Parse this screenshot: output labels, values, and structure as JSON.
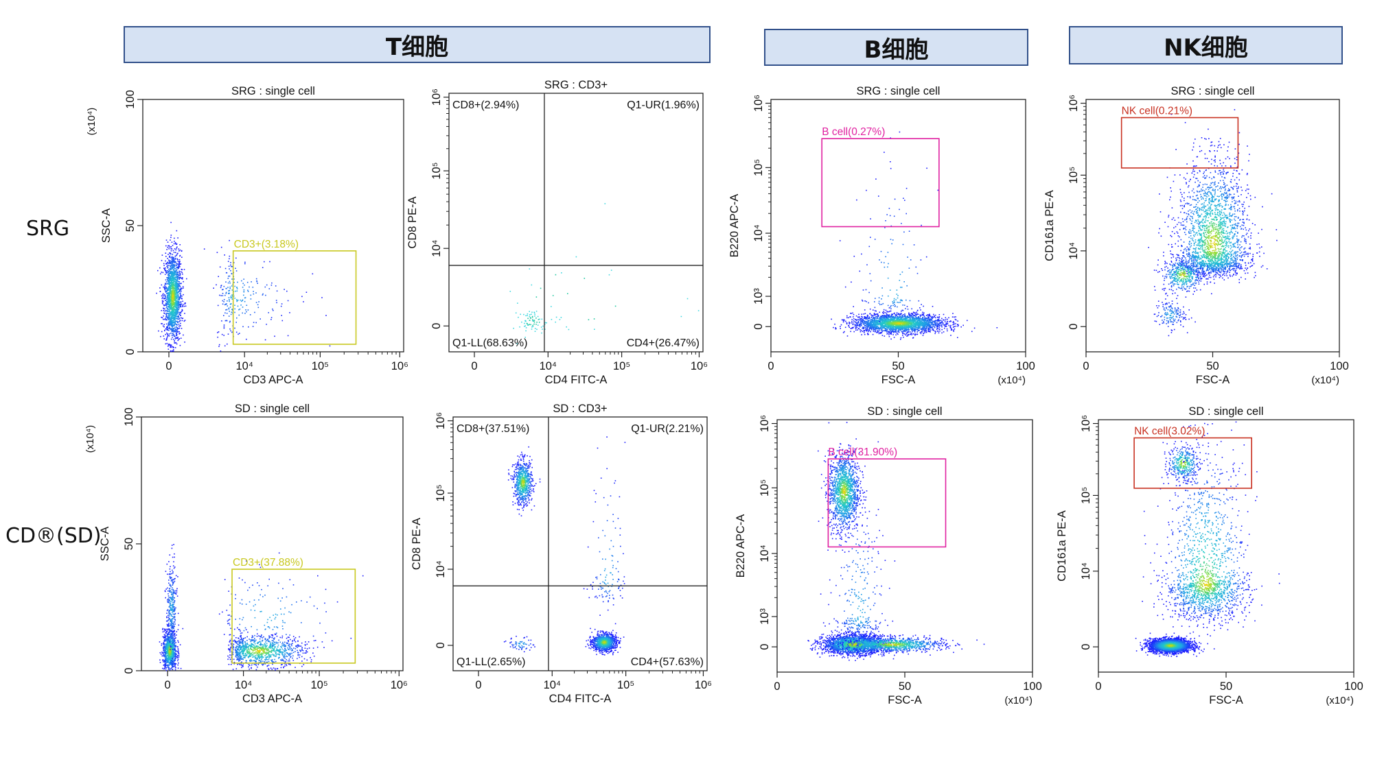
{
  "headers": [
    "T细胞",
    "B细胞",
    "NK细胞"
  ],
  "row_labels": [
    "SRG",
    "CD®(SD)"
  ],
  "colors": {
    "density_low": "#1a1aff",
    "density_mid": "#20c8c8",
    "density_high": "#ffd000",
    "gate_cd3": "#c8c81e",
    "gate_b": "#e020a0",
    "gate_nk": "#c83020",
    "axis": "#222222"
  },
  "chart_data": [
    {
      "type": "scatter",
      "id": "srg-cd3",
      "title": "SRG : single cell",
      "xlabel": "CD3 APC-A",
      "ylabel": "SSC-A",
      "y_multiplier": "(x10⁴)",
      "x_scale": "biexponential",
      "y_scale": "linear",
      "ylim": [
        0,
        100
      ],
      "x_ticks": [
        "0",
        "10⁴",
        "10⁵",
        "10⁶"
      ],
      "y_ticks": [
        "0",
        "50",
        "100"
      ],
      "gate": {
        "label": "CD3+(3.18%)",
        "percent": 3.18,
        "x_range_log": [
          3.7,
          5.45
        ],
        "y_range": [
          3,
          40
        ]
      },
      "populations": [
        {
          "x_log": 0.2,
          "y": 22,
          "sx": 0.25,
          "sy": 9,
          "n": 1700
        },
        {
          "x_log": 3.7,
          "y": 22,
          "sx": 0.5,
          "sy": 9,
          "n": 260
        }
      ]
    },
    {
      "type": "scatter",
      "id": "srg-cd4cd8",
      "title": "SRG : CD3+",
      "xlabel": "CD4 FITC-A",
      "ylabel": "CD8 PE-A",
      "x_scale": "biexponential",
      "y_scale": "biexponential",
      "x_ticks": [
        "0",
        "10⁴",
        "10⁵",
        "10⁶"
      ],
      "y_ticks": [
        "0",
        "10⁴",
        "10⁵",
        "10⁶"
      ],
      "quadrant_split": {
        "x_log": 3.9,
        "y_log": 3.4
      },
      "quadrants": [
        "CD8+(2.94%)",
        "Q1-UR(1.96%)",
        "Q1-LL(68.63%)",
        "CD4+(26.47%)"
      ],
      "populations": [
        {
          "x_log": 3.4,
          "y_log": 0.3,
          "sx": 0.4,
          "sy": 0.3,
          "n": 80
        },
        {
          "x_log": 4.3,
          "y_log": 1.5,
          "sx": 0.9,
          "sy": 1.5,
          "n": 25
        }
      ]
    },
    {
      "type": "scatter",
      "id": "srg-b",
      "title": "SRG : single cell",
      "xlabel": "FSC-A",
      "ylabel": "B220 APC-A",
      "x_multiplier": "(x10⁴)",
      "x_scale": "linear",
      "y_scale": "biexponential",
      "xlim": [
        0,
        100
      ],
      "x_ticks": [
        "0",
        "50",
        "100"
      ],
      "y_ticks": [
        "0",
        "10³",
        "10⁴",
        "10⁵",
        "10⁶"
      ],
      "gate": {
        "label": "B cell(0.27%)",
        "percent": 0.27,
        "x_range": [
          20,
          66
        ],
        "y_range_log": [
          4.1,
          5.45
        ]
      },
      "populations": [
        {
          "x": 50,
          "y_log": 0.4,
          "sx": 9,
          "sy": 0.5,
          "n": 2400
        },
        {
          "x": 48,
          "y_log": 3.1,
          "sx": 7,
          "sy": 0.9,
          "n": 140
        }
      ]
    },
    {
      "type": "scatter",
      "id": "srg-nk",
      "title": "SRG : single cell",
      "xlabel": "FSC-A",
      "ylabel": "CD161a PE-A",
      "x_multiplier": "(x10⁴)",
      "x_scale": "linear",
      "y_scale": "biexponential",
      "xlim": [
        0,
        100
      ],
      "x_ticks": [
        "0",
        "50",
        "100"
      ],
      "y_ticks": [
        "0",
        "10⁴",
        "10⁵",
        "10⁶"
      ],
      "gate": {
        "label": "NK cell(0.21%)",
        "percent": 0.21,
        "x_range": [
          14,
          60
        ],
        "y_range_log": [
          5.1,
          5.8
        ]
      },
      "populations": [
        {
          "x": 50,
          "y_log": 4.1,
          "sx": 7,
          "sy": 0.55,
          "n": 2300
        },
        {
          "x": 38,
          "y_log": 3.0,
          "sx": 4,
          "sy": 0.5,
          "n": 400
        },
        {
          "x": 33,
          "y_log": 0.7,
          "sx": 3,
          "sy": 0.4,
          "n": 150
        }
      ]
    },
    {
      "type": "scatter",
      "id": "sd-cd3",
      "title": "SD : single cell",
      "xlabel": "CD3 APC-A",
      "ylabel": "SSC-A",
      "y_multiplier": "(x10⁴)",
      "x_scale": "biexponential",
      "y_scale": "linear",
      "ylim": [
        0,
        100
      ],
      "x_ticks": [
        "0",
        "10⁴",
        "10⁵",
        "10⁶"
      ],
      "y_ticks": [
        "0",
        "50",
        "100"
      ],
      "gate": {
        "label": "CD3+(37.88%)",
        "percent": 37.88,
        "x_range_log": [
          3.7,
          5.45
        ],
        "y_range": [
          3,
          40
        ]
      },
      "populations": [
        {
          "x_log": 0.1,
          "y": 8,
          "sx": 0.2,
          "sy": 4,
          "n": 900
        },
        {
          "x_log": 0.2,
          "y": 25,
          "sx": 0.15,
          "sy": 9,
          "n": 300
        },
        {
          "x_log": 4.2,
          "y": 8,
          "sx": 0.3,
          "sy": 3,
          "n": 1000
        },
        {
          "x_log": 4.3,
          "y": 22,
          "sx": 0.5,
          "sy": 9,
          "n": 150
        }
      ]
    },
    {
      "type": "scatter",
      "id": "sd-cd4cd8",
      "title": "SD : CD3+",
      "xlabel": "CD4 FITC-A",
      "ylabel": "CD8 PE-A",
      "x_scale": "biexponential",
      "y_scale": "biexponential",
      "x_ticks": [
        "0",
        "10⁴",
        "10⁵",
        "10⁶"
      ],
      "y_ticks": [
        "0",
        "10⁴",
        "10⁵",
        "10⁶"
      ],
      "quadrant_split": {
        "x_log": 3.9,
        "y_log": 3.4
      },
      "quadrants": [
        "CD8+(37.51%)",
        "Q1-UR(2.21%)",
        "Q1-LL(2.65%)",
        "CD4+(57.63%)"
      ],
      "populations": [
        {
          "x_log": 2.6,
          "y_log": 5.15,
          "sx": 0.28,
          "sy": 0.15,
          "n": 700
        },
        {
          "x_log": 4.7,
          "y_log": 0.2,
          "sx": 0.08,
          "sy": 0.25,
          "n": 1000
        },
        {
          "x_log": 4.75,
          "y_log": 3.8,
          "sx": 0.12,
          "sy": 0.8,
          "n": 120
        },
        {
          "x_log": 2.5,
          "y_log": 0.1,
          "sx": 0.4,
          "sy": 0.2,
          "n": 60
        }
      ]
    },
    {
      "type": "scatter",
      "id": "sd-b",
      "title": "SD : single cell",
      "xlabel": "FSC-A",
      "ylabel": "B220 APC-A",
      "x_multiplier": "(x10⁴)",
      "x_scale": "linear",
      "y_scale": "biexponential",
      "xlim": [
        0,
        100
      ],
      "x_ticks": [
        "0",
        "50",
        "100"
      ],
      "y_ticks": [
        "0",
        "10³",
        "10⁴",
        "10⁵",
        "10⁶"
      ],
      "gate": {
        "label": "B cell(31.90%)",
        "percent": 31.9,
        "x_range": [
          20,
          66
        ],
        "y_range_log": [
          4.1,
          5.45
        ]
      },
      "populations": [
        {
          "x": 26,
          "y_log": 4.95,
          "sx": 3,
          "sy": 0.3,
          "n": 1400
        },
        {
          "x": 30,
          "y_log": 0.3,
          "sx": 6,
          "sy": 0.5,
          "n": 2200
        },
        {
          "x": 45,
          "y_log": 0.3,
          "sx": 10,
          "sy": 0.4,
          "n": 900
        },
        {
          "x": 32,
          "y_log": 3.0,
          "sx": 5,
          "sy": 1.0,
          "n": 300
        }
      ]
    },
    {
      "type": "scatter",
      "id": "sd-nk",
      "title": "SD : single cell",
      "xlabel": "FSC-A",
      "ylabel": "CD161a PE-A",
      "x_multiplier": "(x10⁴)",
      "x_scale": "linear",
      "y_scale": "biexponential",
      "xlim": [
        0,
        100
      ],
      "x_ticks": [
        "0",
        "50",
        "100"
      ],
      "y_ticks": [
        "0",
        "10⁴",
        "10⁵",
        "10⁶"
      ],
      "gate": {
        "label": "NK cell(3.02%)",
        "percent": 3.02,
        "x_range": [
          14,
          60
        ],
        "y_range_log": [
          5.1,
          5.8
        ]
      },
      "populations": [
        {
          "x": 33,
          "y_log": 5.45,
          "sx": 3,
          "sy": 0.12,
          "n": 350
        },
        {
          "x": 28,
          "y_log": 0.1,
          "sx": 4,
          "sy": 0.2,
          "n": 2600
        },
        {
          "x": 42,
          "y_log": 3.6,
          "sx": 8,
          "sy": 1.0,
          "n": 1700
        }
      ]
    }
  ]
}
